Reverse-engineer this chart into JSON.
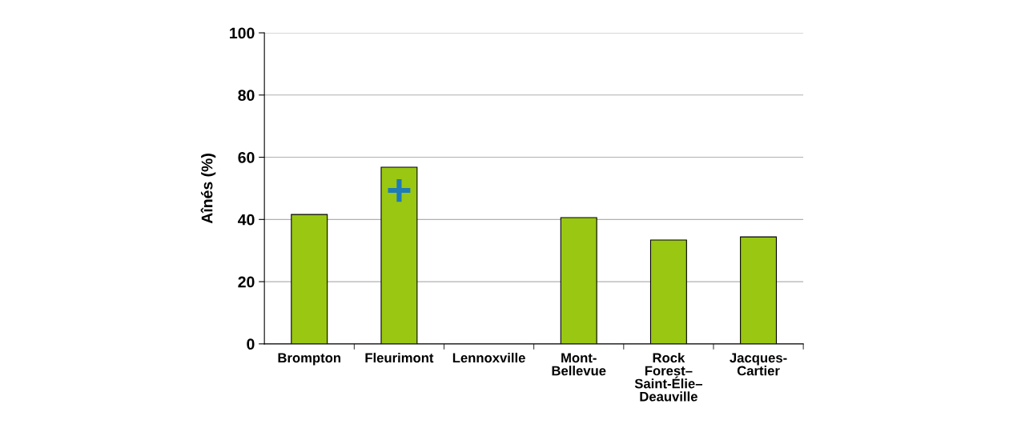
{
  "chart_data": {
    "type": "bar",
    "ylabel": "Aînés (%)",
    "categories": [
      "Brompton",
      "Fleurimont",
      "Lennoxville",
      "Mont-\nBellevue",
      "Rock\nForest–\nSaint-Élie–\nDeauville",
      "Jacques-\nCartier"
    ],
    "values": [
      41.6,
      56.8,
      null,
      40.6,
      33.4,
      34.4
    ],
    "color": "#99c712",
    "ylim": [
      0,
      100
    ],
    "yticks": [
      0,
      20,
      40,
      60,
      80,
      100
    ],
    "grid": "y",
    "annotations": [
      "+"
    ]
  }
}
